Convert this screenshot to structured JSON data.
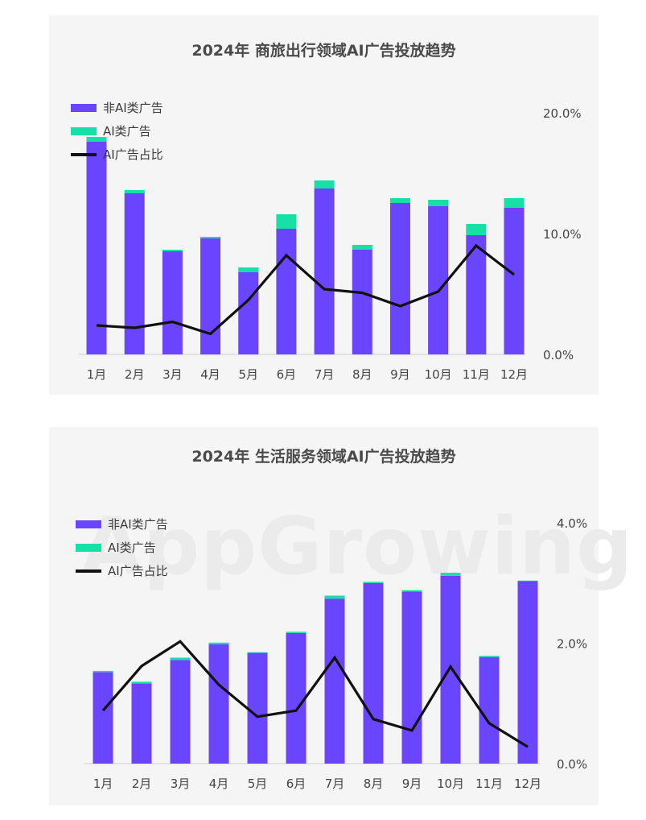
{
  "chart_data": [
    {
      "type": "bar",
      "title": "2024年  商旅出行领域AI广告投放趋势",
      "categories": [
        "1月",
        "2月",
        "3月",
        "4月",
        "5月",
        "6月",
        "7月",
        "8月",
        "9月",
        "10月",
        "11月",
        "12月"
      ],
      "series": [
        {
          "name": "非AI类广告",
          "values": [
            13.2,
            10.0,
            6.4,
            7.2,
            5.1,
            7.8,
            10.3,
            6.5,
            9.4,
            9.2,
            7.4,
            9.1
          ],
          "color": "#6a45ff"
        },
        {
          "name": "AI类广告",
          "values": [
            0.3,
            0.2,
            0.1,
            0.1,
            0.3,
            0.9,
            0.5,
            0.3,
            0.3,
            0.4,
            0.7,
            0.6
          ],
          "color": "#17e0a6"
        },
        {
          "name": "AI广告占比",
          "values": [
            2.4,
            2.2,
            2.7,
            1.7,
            4.5,
            8.2,
            5.4,
            5.1,
            4.0,
            5.2,
            9.0,
            6.6
          ],
          "color": "#111111"
        }
      ],
      "y2_ticks": [
        "20.0%",
        "10.0%",
        "0.0%"
      ],
      "y2lim": [
        0,
        20
      ],
      "legend_position": "top-left"
    },
    {
      "type": "bar",
      "title": "2024年  生活服务领域AI广告投放趋势",
      "categories": [
        "1月",
        "2月",
        "3月",
        "4月",
        "5月",
        "6月",
        "7月",
        "8月",
        "9月",
        "10月",
        "11月",
        "12月"
      ],
      "series": [
        {
          "name": "非AI类广告",
          "values": [
            1.52,
            1.33,
            1.72,
            1.98,
            1.84,
            2.17,
            2.74,
            3.0,
            2.86,
            3.12,
            1.77,
            3.03
          ],
          "color": "#6a45ff"
        },
        {
          "name": "AI类广告",
          "values": [
            0.02,
            0.03,
            0.04,
            0.03,
            0.01,
            0.02,
            0.05,
            0.02,
            0.02,
            0.05,
            0.02,
            0.01
          ],
          "color": "#17e0a6"
        },
        {
          "name": "AI广告占比",
          "values": [
            0.88,
            1.62,
            2.03,
            1.31,
            0.78,
            0.88,
            1.76,
            0.74,
            0.55,
            1.61,
            0.67,
            0.28
          ],
          "color": "#111111"
        }
      ],
      "y2_ticks": [
        "4.0%",
        "2.0%",
        "0.0%"
      ],
      "y2lim": [
        0,
        4
      ],
      "legend_position": "top-left"
    }
  ],
  "watermark_text": "AppGrowing"
}
